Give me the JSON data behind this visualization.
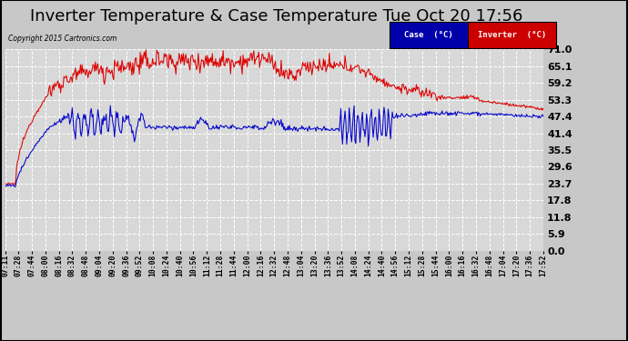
{
  "title": "Inverter Temperature & Case Temperature Tue Oct 20 17:56",
  "copyright": "Copyright 2015 Cartronics.com",
  "legend_case": "Case  (°C)",
  "legend_inverter": "Inverter  (°C)",
  "yticks": [
    0.0,
    5.9,
    11.8,
    17.8,
    23.7,
    29.6,
    35.5,
    41.4,
    47.4,
    53.3,
    59.2,
    65.1,
    71.0
  ],
  "ymin": 0.0,
  "ymax": 71.0,
  "bg_color": "#c8c8c8",
  "plot_bg_color": "#d8d8d8",
  "grid_color": "#ffffff",
  "case_color": "#dd0000",
  "inverter_color": "#0000cc",
  "title_fontsize": 13,
  "tick_fontsize": 8,
  "xtick_labels": [
    "07:11",
    "07:28",
    "07:44",
    "08:00",
    "08:16",
    "08:32",
    "08:48",
    "09:04",
    "09:20",
    "09:36",
    "09:52",
    "10:08",
    "10:24",
    "10:40",
    "10:56",
    "11:12",
    "11:28",
    "11:44",
    "12:00",
    "12:16",
    "12:32",
    "12:48",
    "13:04",
    "13:20",
    "13:36",
    "13:52",
    "14:08",
    "14:24",
    "14:40",
    "14:56",
    "15:12",
    "15:28",
    "15:44",
    "16:00",
    "16:16",
    "16:32",
    "16:48",
    "17:04",
    "17:20",
    "17:36",
    "17:52"
  ]
}
